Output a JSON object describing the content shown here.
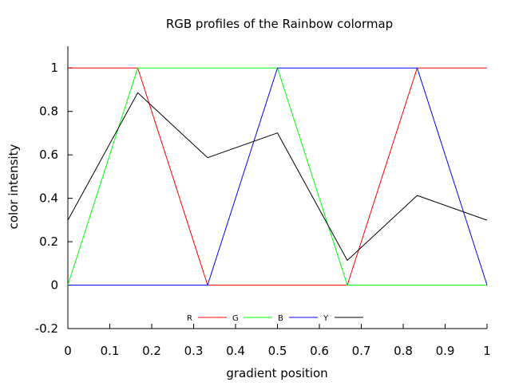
{
  "chart_data": {
    "type": "line",
    "title": "RGB profiles of the Rainbow colormap",
    "xlabel": "gradient position",
    "ylabel": "color intensity",
    "xlim": [
      0,
      1
    ],
    "ylim": [
      -0.2,
      1.1
    ],
    "xticks": [
      0,
      0.1,
      0.2,
      0.3,
      0.4,
      0.5,
      0.6,
      0.7,
      0.8,
      0.9,
      1
    ],
    "xtick_labels": [
      "0",
      "0.1",
      "0.2",
      "0.3",
      "0.4",
      "0.5",
      "0.6",
      "0.7",
      "0.8",
      "0.9",
      "1"
    ],
    "yticks": [
      -0.2,
      0,
      0.2,
      0.4,
      0.6,
      0.8,
      1
    ],
    "ytick_labels": [
      "-0.2",
      "0",
      "0.2",
      "0.4",
      "0.6",
      "0.8",
      "1"
    ],
    "grid": false,
    "legend_position": "bottom-center",
    "series": [
      {
        "name": "R",
        "color": "#ff0000",
        "points": [
          [
            0,
            1
          ],
          [
            0.1667,
            1
          ],
          [
            0.3333,
            0
          ],
          [
            0.6667,
            0
          ],
          [
            0.8333,
            1
          ],
          [
            1,
            1
          ]
        ]
      },
      {
        "name": "G",
        "color": "#00ff00",
        "points": [
          [
            0,
            0
          ],
          [
            0.1667,
            1
          ],
          [
            0.5,
            1
          ],
          [
            0.6667,
            0
          ],
          [
            1,
            0
          ]
        ]
      },
      {
        "name": "B",
        "color": "#0000ff",
        "points": [
          [
            0,
            0
          ],
          [
            0.3333,
            0
          ],
          [
            0.5,
            1
          ],
          [
            0.8333,
            1
          ],
          [
            1,
            0
          ]
        ]
      },
      {
        "name": "Y",
        "color": "#000000",
        "points": [
          [
            0,
            0.299
          ],
          [
            0.1667,
            0.886
          ],
          [
            0.3333,
            0.587
          ],
          [
            0.5,
            0.701
          ],
          [
            0.6667,
            0.114
          ],
          [
            0.8333,
            0.413
          ],
          [
            1,
            0.299
          ]
        ]
      }
    ]
  }
}
